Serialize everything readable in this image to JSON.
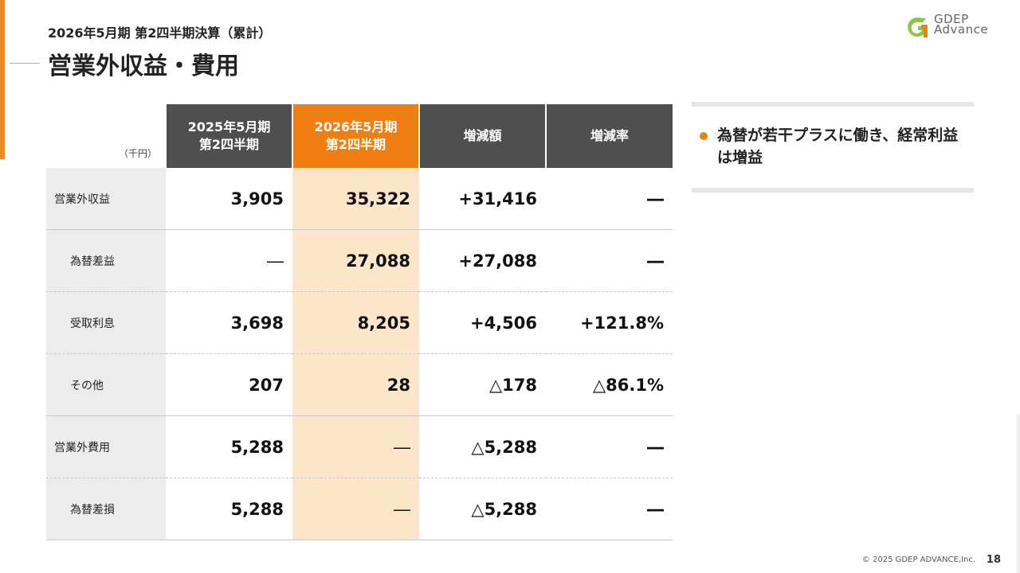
{
  "header": {
    "subtitle": "2026年5月期 第2四半期決算（累計）",
    "title": "営業外収益・費用"
  },
  "logo": {
    "line1": "GDEP",
    "line2": "Advance"
  },
  "table": {
    "unit": "（千円）",
    "columns": [
      {
        "line1": "2025年5月期",
        "line2": "第2四半期"
      },
      {
        "line1": "2026年5月期",
        "line2": "第2四半期"
      },
      {
        "line1": "増減額",
        "line2": ""
      },
      {
        "line1": "増減率",
        "line2": ""
      }
    ],
    "rows": [
      {
        "label": "営業外収益",
        "prev": "3,905",
        "curr": "35,322",
        "diff": "+31,416",
        "rate": "―"
      },
      {
        "label": "為替差益",
        "prev": "―",
        "curr": "27,088",
        "diff": "+27,088",
        "rate": "―"
      },
      {
        "label": "受取利息",
        "prev": "3,698",
        "curr": "8,205",
        "diff": "+4,506",
        "rate": "+121.8%"
      },
      {
        "label": "その他",
        "prev": "207",
        "curr": "28",
        "diff": "△178",
        "rate": "△86.1%"
      },
      {
        "label": "営業外費用",
        "prev": "5,288",
        "curr": "―",
        "diff": "△5,288",
        "rate": "―"
      },
      {
        "label": "為替差損",
        "prev": "5,288",
        "curr": "―",
        "diff": "△5,288",
        "rate": "―"
      }
    ]
  },
  "side_note": {
    "text": "為替が若干プラスに働き、経常利益は増益"
  },
  "footer": {
    "copyright": "© 2025 GDEP ADVANCE,Inc.",
    "page": "18"
  },
  "colors": {
    "accent": "#ef7f12",
    "header_dark": "#4f4f4f",
    "highlight_bg": "#fde5c9",
    "label_bg": "#ececec"
  }
}
